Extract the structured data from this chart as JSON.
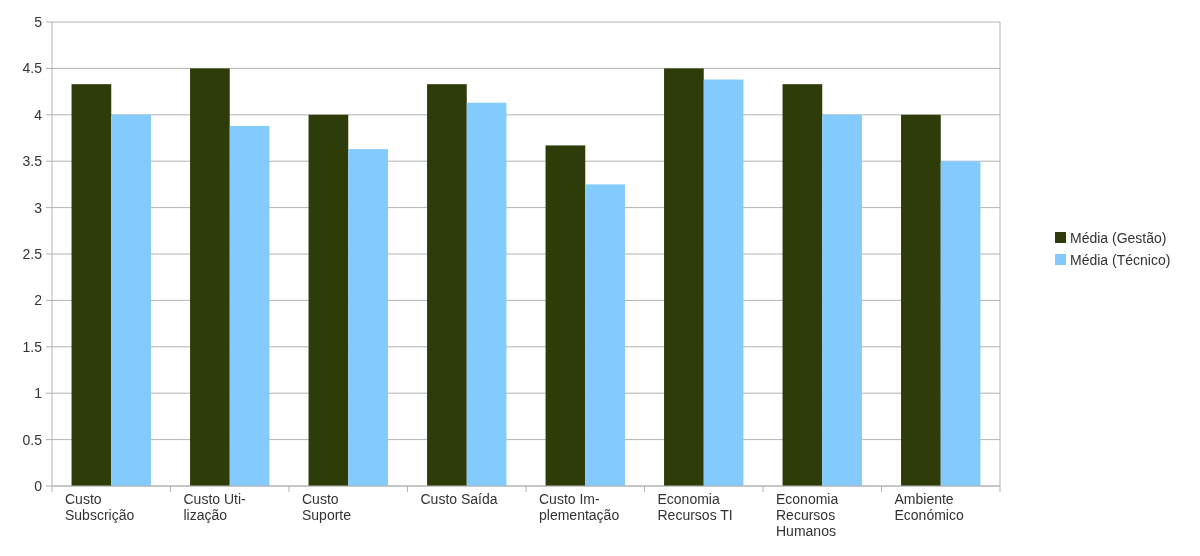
{
  "chart_data": {
    "type": "bar",
    "categories": [
      "Custo\nSubscrição",
      "Custo Uti-\nlização",
      "Custo\nSuporte",
      "Custo Saída",
      "Custo Im-\nplementação",
      "Economia\nRecursos TI",
      "Economia\nRecursos\nHumanos",
      "Ambiente\nEconómico"
    ],
    "series": [
      {
        "name": "Média (Gestão)",
        "color": "#2d3c08",
        "values": [
          4.33,
          4.5,
          4.0,
          4.33,
          3.67,
          4.5,
          4.33,
          4.0
        ]
      },
      {
        "name": "Média (Técnico)",
        "color": "#83caff",
        "values": [
          4.0,
          3.88,
          3.63,
          4.13,
          3.25,
          4.38,
          4.0,
          3.5
        ]
      }
    ],
    "ylim": [
      0,
      5
    ],
    "yticks": [
      0,
      0.5,
      1,
      1.5,
      2,
      2.5,
      3,
      3.5,
      4,
      4.5,
      5
    ],
    "grid": "y",
    "legend": "right"
  }
}
